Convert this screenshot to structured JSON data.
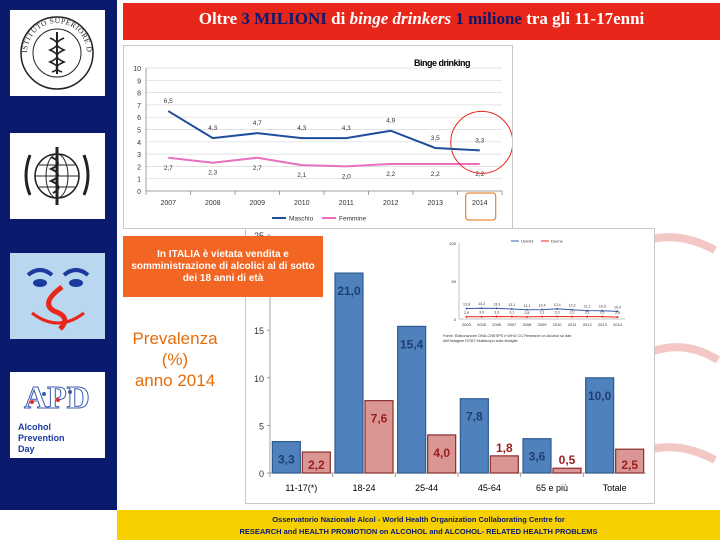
{
  "title": {
    "part1": "Oltre ",
    "highlight1": "3 MILIONI",
    "part2": " di ",
    "italic": "binge drinkers",
    "part3": " ",
    "highlight2": "1 milione",
    "part4": " tra gli 11-17enni"
  },
  "sidebar": {
    "logos": [
      "Istituto Superiore di Sanità",
      "World Health Organization",
      "Osservatorio Nazionale Alcol",
      "Alcohol Prevention Day"
    ],
    "iss_text": "ISTITUTO SUPERIORE DI SANITA",
    "apd_text": [
      "Alcohol",
      "Prevention",
      "Day"
    ],
    "apd_mark": "APD"
  },
  "notice": "In ITALIA è vietata vendita e somministrazione di alcolici al di sotto dei 18 anni di età",
  "prevalence_label": [
    "Prevalenza",
    "(%)",
    "anno 2014"
  ],
  "footer": {
    "line1": "Osservatorio Nazionale Alcol  - World Health Organization Collaborating   Centre    for",
    "line2": "RESEARCH and HEALTH   PROMOTION   on     ALCOHOL    and  ALCOHOL- RELATED    HEALTH   PROBLEMS"
  },
  "colors": {
    "sidebar": "#0a1a6e",
    "title_bar": "#e8261a",
    "footer": "#f7d000",
    "maschio": "#1f4e9a",
    "femmine": "#e86fc1",
    "bar_male": "#4f81bd",
    "bar_female": "#d99694",
    "accent_orange": "#e46c0a"
  },
  "chart_data": [
    {
      "type": "line",
      "title": "Binge drinking",
      "x": [
        "2007",
        "2008",
        "2009",
        "2010",
        "2011",
        "2012",
        "2013",
        "2014"
      ],
      "ylim": [
        0,
        10
      ],
      "yticks": [
        0,
        1,
        2,
        3,
        4,
        5,
        6,
        7,
        8,
        9,
        10
      ],
      "grid": true,
      "legend": "bottom",
      "series": [
        {
          "name": "Maschio",
          "values": [
            6.5,
            4.3,
            4.7,
            4.3,
            4.3,
            4.9,
            3.5,
            3.3
          ],
          "labels": [
            "6,5",
            "4,3",
            "4,7",
            "4,3",
            "4,3",
            "4,9",
            "3,5",
            "3,3"
          ]
        },
        {
          "name": "Femmine",
          "values": [
            2.7,
            2.3,
            2.7,
            2.1,
            2.0,
            2.2,
            2.2,
            2.2
          ],
          "labels": [
            "2,7",
            "2,3",
            "2,7",
            "2,1",
            "2,0",
            "2,2",
            "2,2",
            "2,2"
          ]
        }
      ],
      "annotations": [
        "circle around 2014 values",
        "box around 2014 label"
      ]
    },
    {
      "type": "bar",
      "categories": [
        "11-17(*)",
        "18-24",
        "25-44",
        "45-64",
        "65 e più",
        "Totale"
      ],
      "ylim": [
        0,
        25
      ],
      "yticks": [
        0,
        5,
        10,
        15,
        20,
        25
      ],
      "series": [
        {
          "values": [
            3.3,
            21.0,
            15.4,
            7.8,
            3.6,
            10.0
          ],
          "labels": [
            "3,3",
            "21,0",
            "15,4",
            "7,8",
            "3,6",
            "10,0"
          ]
        },
        {
          "values": [
            2.2,
            7.6,
            4.0,
            1.8,
            0.5,
            2.5
          ],
          "labels": [
            "2,2",
            "7,6",
            "4,0",
            "1,8",
            "0,5",
            "2,5"
          ]
        }
      ]
    },
    {
      "type": "line",
      "x": [
        "2003",
        "2005",
        "2006",
        "2007",
        "2008",
        "2009",
        "2010",
        "2011",
        "2012",
        "2013",
        "2014"
      ],
      "ylim": [
        0,
        100
      ],
      "yticks": [
        0,
        50,
        100
      ],
      "legend": "top",
      "series": [
        {
          "name": "Uomini",
          "values": [
            13.8,
            14.2,
            13.9,
            13.1,
            12.1,
            12.4,
            13.4,
            12.2,
            11.1,
            10.9,
            10.0
          ],
          "labels": [
            "13,8",
            "14,2",
            "13,9",
            "13,1",
            "12,1",
            "12,4",
            "13,4",
            "12,2",
            "11,1",
            "10,9",
            "10,0"
          ]
        },
        {
          "name": "Donne",
          "values": [
            2.9,
            3.0,
            3.3,
            3.1,
            2.8,
            3.1,
            3.3,
            3.2,
            3.1,
            3.1,
            2.5
          ],
          "labels": [
            "2,9",
            "3,0",
            "3,3",
            "3,1",
            "2,8",
            "3,1",
            "3,3",
            "3,2",
            "3,1",
            "3,1",
            "2,5"
          ]
        }
      ],
      "source": "Fonte: Elaborazione ONA-CNESPS e WHO CC Research on Alcohol su dati dell'Indagine ISTAT Multiscopo sulle famiglie"
    }
  ]
}
